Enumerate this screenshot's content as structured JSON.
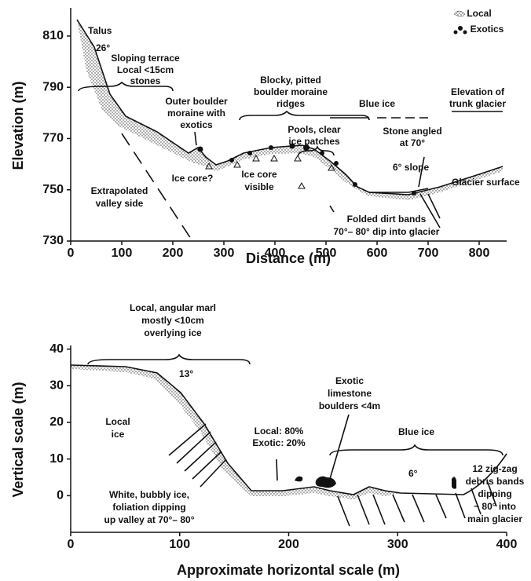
{
  "panels": [
    {
      "x_label": "Distance (m)",
      "y_label": "Elevation (m)",
      "xlim": [
        0,
        850
      ],
      "ylim": [
        730,
        821
      ],
      "xticks": [
        0,
        100,
        200,
        300,
        400,
        500,
        600,
        700,
        800
      ],
      "yticks": [
        730,
        750,
        770,
        790,
        810
      ],
      "legend": [
        "Local",
        "Exotics"
      ],
      "annotations": [
        [
          "Talus"
        ],
        [
          "26°"
        ],
        [
          "Sloping terrace",
          "Local <15cm",
          "stones"
        ],
        [
          "Outer boulder",
          "moraine with",
          "exotics"
        ],
        [
          "Blocky, pitted",
          "boulder moraine",
          "ridges"
        ],
        [
          "Blue ice"
        ],
        [
          "Elevation of",
          "trunk glacier"
        ],
        [
          "Pools, clear",
          "ice patches"
        ],
        [
          "Stone angled",
          "at 70°"
        ],
        [
          "Ice core?"
        ],
        [
          "Ice core",
          "visible"
        ],
        [
          "6° slope"
        ],
        [
          "Glacier surface"
        ],
        [
          "Extrapolated",
          "valley side"
        ],
        [
          "Folded dirt bands",
          "70°– 80° dip into glacier"
        ]
      ]
    },
    {
      "x_label": "Approximate horizontal scale (m)",
      "y_label": "Vertical scale (m)",
      "xlim": [
        0,
        400
      ],
      "ylim": [
        -10,
        41
      ],
      "xticks": [
        0,
        100,
        200,
        300,
        400
      ],
      "yticks": [
        0,
        10,
        20,
        30,
        40
      ],
      "annotations": [
        [
          "Local, angular marl",
          "mostly <10cm",
          "overlying ice"
        ],
        [
          "13°"
        ],
        [
          "Local",
          "ice"
        ],
        [
          "Local: 80%",
          "Exotic: 20%"
        ],
        [
          "Exotic",
          "limestone",
          "boulders <4m"
        ],
        [
          "Blue ice"
        ],
        [
          "6°"
        ],
        [
          "12 zig-zag",
          "debris bands",
          "dipping",
          "~ 80° into",
          "main glacier"
        ],
        [
          "White, bubbly ice,",
          "foliation dipping",
          "up valley at 70°– 80°"
        ]
      ]
    }
  ]
}
